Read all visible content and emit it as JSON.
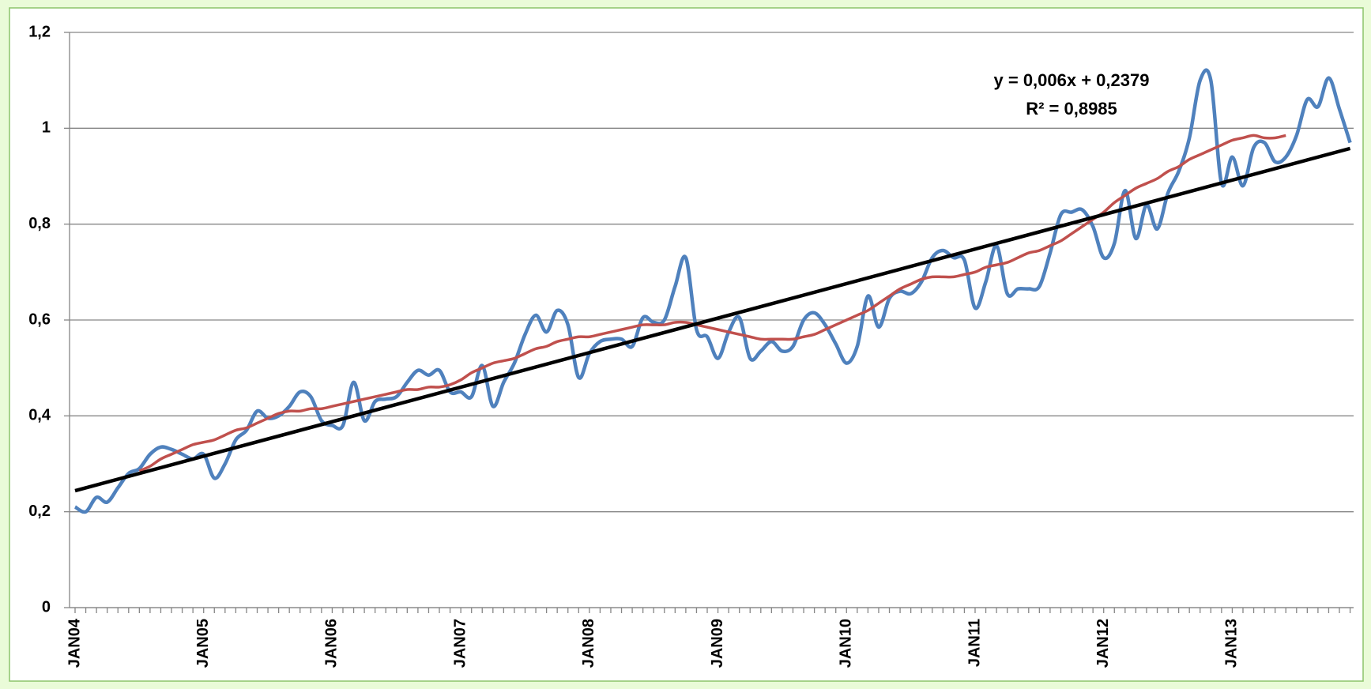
{
  "chart_data": {
    "type": "line",
    "categories": [
      "JAN04",
      null,
      null,
      null,
      null,
      null,
      null,
      null,
      null,
      null,
      null,
      null,
      "JAN05",
      null,
      null,
      null,
      null,
      null,
      null,
      null,
      null,
      null,
      null,
      null,
      "JAN06",
      null,
      null,
      null,
      null,
      null,
      null,
      null,
      null,
      null,
      null,
      null,
      "JAN07",
      null,
      null,
      null,
      null,
      null,
      null,
      null,
      null,
      null,
      null,
      null,
      "JAN08",
      null,
      null,
      null,
      null,
      null,
      null,
      null,
      null,
      null,
      null,
      null,
      "JAN09",
      null,
      null,
      null,
      null,
      null,
      null,
      null,
      null,
      null,
      null,
      null,
      "JAN10",
      null,
      null,
      null,
      null,
      null,
      null,
      null,
      null,
      null,
      null,
      null,
      "JAN11",
      null,
      null,
      null,
      null,
      null,
      null,
      null,
      null,
      null,
      null,
      null,
      "JAN12",
      null,
      null,
      null,
      null,
      null,
      null,
      null,
      null,
      null,
      null,
      null,
      "JAN13",
      null,
      null,
      null,
      null,
      null,
      null,
      null,
      null,
      null,
      null,
      null
    ],
    "series": [
      {
        "color": "#4f81bd",
        "values": [
          0.21,
          0.2,
          0.23,
          0.22,
          0.25,
          0.28,
          0.29,
          0.32,
          0.335,
          0.33,
          0.32,
          0.31,
          0.32,
          0.27,
          0.3,
          0.35,
          0.37,
          0.41,
          0.395,
          0.4,
          0.42,
          0.45,
          0.44,
          0.39,
          0.38,
          0.38,
          0.47,
          0.39,
          0.43,
          0.435,
          0.44,
          0.47,
          0.495,
          0.485,
          0.495,
          0.45,
          0.45,
          0.44,
          0.505,
          0.42,
          0.47,
          0.51,
          0.57,
          0.61,
          0.575,
          0.62,
          0.59,
          0.48,
          0.53,
          0.555,
          0.56,
          0.56,
          0.545,
          0.605,
          0.595,
          0.6,
          0.67,
          0.73,
          0.58,
          0.565,
          0.52,
          0.575,
          0.605,
          0.52,
          0.535,
          0.555,
          0.535,
          0.545,
          0.6,
          0.615,
          0.59,
          0.55,
          0.51,
          0.545,
          0.65,
          0.585,
          0.645,
          0.66,
          0.655,
          0.68,
          0.73,
          0.745,
          0.73,
          0.725,
          0.625,
          0.68,
          0.755,
          0.655,
          0.665,
          0.665,
          0.67,
          0.74,
          0.82,
          0.825,
          0.83,
          0.795,
          0.73,
          0.76,
          0.87,
          0.77,
          0.84,
          0.79,
          0.865,
          0.91,
          0.98,
          1.1,
          1.1,
          0.885,
          0.94,
          0.88,
          0.96,
          0.97,
          0.93,
          0.94,
          0.985,
          1.06,
          1.045,
          1.105,
          1.04,
          0.97
        ]
      },
      {
        "color": "#c0504d",
        "values": [
          null,
          null,
          null,
          null,
          null,
          null,
          0.285,
          0.295,
          0.31,
          0.32,
          0.33,
          0.34,
          0.345,
          0.35,
          0.36,
          0.37,
          0.375,
          0.385,
          0.395,
          0.405,
          0.41,
          0.41,
          0.415,
          0.415,
          0.42,
          0.425,
          0.43,
          0.435,
          0.44,
          0.445,
          0.45,
          0.455,
          0.455,
          0.46,
          0.46,
          0.465,
          0.475,
          0.49,
          0.5,
          0.51,
          0.515,
          0.52,
          0.53,
          0.54,
          0.545,
          0.555,
          0.56,
          0.565,
          0.565,
          0.57,
          0.575,
          0.58,
          0.585,
          0.59,
          0.59,
          0.59,
          0.595,
          0.595,
          0.59,
          0.585,
          0.58,
          0.575,
          0.57,
          0.565,
          0.56,
          0.56,
          0.56,
          0.56,
          0.565,
          0.57,
          0.58,
          0.59,
          0.6,
          0.61,
          0.62,
          0.635,
          0.65,
          0.665,
          0.675,
          0.685,
          0.69,
          0.69,
          0.69,
          0.695,
          0.7,
          0.71,
          0.715,
          0.72,
          0.73,
          0.74,
          0.745,
          0.755,
          0.765,
          0.78,
          0.795,
          0.81,
          0.825,
          0.845,
          0.86,
          0.875,
          0.885,
          0.895,
          0.91,
          0.92,
          0.935,
          0.945,
          0.955,
          0.965,
          0.975,
          0.98,
          0.985,
          0.98,
          0.98,
          0.985,
          null,
          null,
          null,
          null,
          null,
          null
        ]
      }
    ],
    "trendline": {
      "color": "#000000",
      "start": 0.2439,
      "end": 0.9579
    },
    "annotations": [
      "y = 0,006x + 0,2379",
      "R² = 0,8985"
    ],
    "ylim": [
      0,
      1.2
    ],
    "yticks": [
      0,
      {
        "value": 0.2,
        "label": "0,2"
      },
      {
        "value": 0.4,
        "label": "0,4"
      },
      {
        "value": 0.6,
        "label": "0,6"
      },
      {
        "value": 0.8,
        "label": "0,8"
      },
      1,
      {
        "value": 1.2,
        "label": "1,2"
      }
    ],
    "grid": true
  }
}
